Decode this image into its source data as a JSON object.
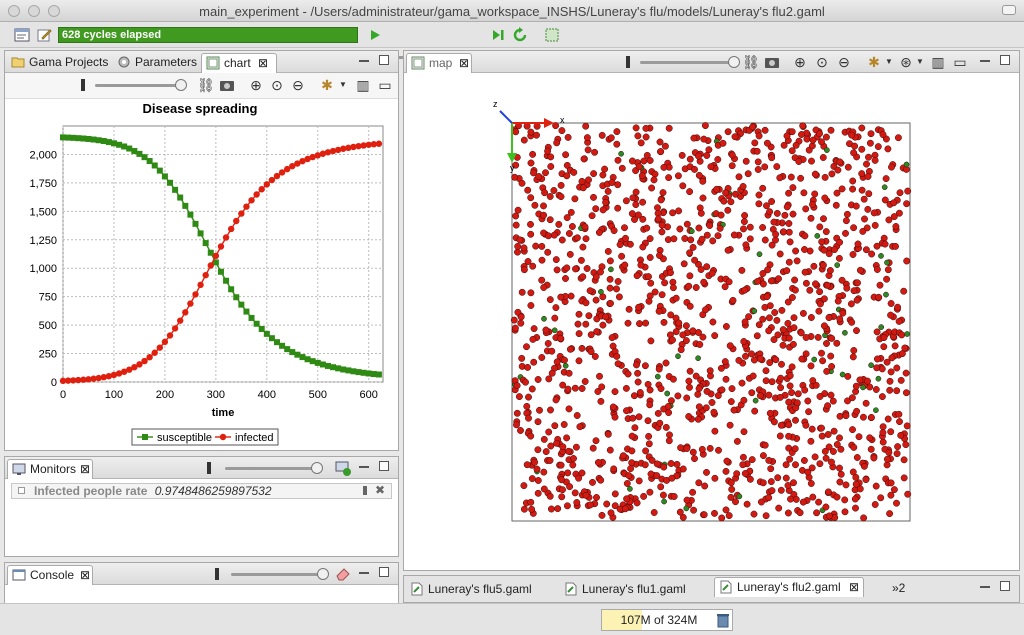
{
  "window": {
    "title": "main_experiment - /Users/administrateur/gama_workspace_INSHS/Luneray's flu/models/Luneray's flu2.gaml"
  },
  "toolbar": {
    "cycles_text": "628 cycles elapsed"
  },
  "left_tabs": [
    {
      "label": "Gama Projects"
    },
    {
      "label": "Parameters"
    },
    {
      "label": "chart"
    }
  ],
  "chart_data": {
    "type": "line",
    "title": "Disease spreading",
    "xlabel": "time",
    "ylabel": "",
    "xlim": [
      0,
      628
    ],
    "ylim": [
      0,
      2250
    ],
    "x_ticks": [
      "0",
      "100",
      "200",
      "300",
      "400",
      "500",
      "600"
    ],
    "y_ticks": [
      "0",
      "250",
      "500",
      "750",
      "1,000",
      "1,250",
      "1,500",
      "1,750",
      "2,000"
    ],
    "x_tick_values": [
      0,
      100,
      200,
      300,
      400,
      500,
      600
    ],
    "y_tick_values": [
      0,
      250,
      500,
      750,
      1000,
      1250,
      1500,
      1750,
      2000
    ],
    "x": [
      0,
      10,
      20,
      30,
      40,
      50,
      60,
      70,
      80,
      90,
      100,
      110,
      120,
      130,
      140,
      150,
      160,
      170,
      180,
      190,
      200,
      210,
      220,
      230,
      240,
      250,
      260,
      270,
      280,
      290,
      300,
      310,
      320,
      330,
      340,
      350,
      360,
      370,
      380,
      390,
      400,
      410,
      420,
      430,
      440,
      450,
      460,
      470,
      480,
      490,
      500,
      510,
      520,
      530,
      540,
      550,
      560,
      570,
      580,
      590,
      600,
      610,
      620
    ],
    "series": [
      {
        "name": "susceptible",
        "color": "#2f8a14",
        "marker": "square",
        "values": [
          2150,
          2148,
          2146,
          2143,
          2140,
          2136,
          2131,
          2125,
          2118,
          2109,
          2098,
          2085,
          2070,
          2052,
          2030,
          2005,
          1976,
          1942,
          1903,
          1858,
          1807,
          1751,
          1689,
          1621,
          1548,
          1471,
          1390,
          1306,
          1221,
          1136,
          1051,
          969,
          890,
          815,
          745,
          680,
          619,
          563,
          512,
          466,
          423,
          385,
          350,
          318,
          289,
          263,
          240,
          219,
          200,
          183,
          168,
          154,
          141,
          130,
          120,
          110,
          102,
          94,
          87,
          81,
          75,
          70,
          66
        ]
      },
      {
        "name": "infected",
        "color": "#e0200e",
        "marker": "circle",
        "values": [
          10,
          12,
          14,
          17,
          20,
          24,
          29,
          35,
          42,
          51,
          62,
          75,
          90,
          108,
          130,
          155,
          184,
          218,
          257,
          302,
          353,
          409,
          471,
          539,
          612,
          689,
          770,
          854,
          939,
          1024,
          1109,
          1191,
          1270,
          1345,
          1415,
          1480,
          1541,
          1597,
          1648,
          1694,
          1737,
          1775,
          1810,
          1842,
          1871,
          1897,
          1920,
          1941,
          1960,
          1977,
          1992,
          2006,
          2019,
          2030,
          2040,
          2050,
          2058,
          2066,
          2073,
          2079,
          2085,
          2090,
          2094
        ]
      }
    ],
    "legend_position": "bottom"
  },
  "monitors": {
    "tab_label": "Monitors",
    "row_label": "Infected people rate",
    "row_value": "0.9748486259897532"
  },
  "console": {
    "tab_label": "Console"
  },
  "map_panel": {
    "tab_label": "map",
    "axis_z": "z",
    "axis_x": "x",
    "axis_y": "y",
    "infected_color": "#d21a12",
    "susceptible_color": "#2a8a24"
  },
  "editor_tabs": [
    {
      "label": "Luneray's flu5.gaml"
    },
    {
      "label": "Luneray's flu1.gaml"
    },
    {
      "label": "Luneray's flu2.gaml"
    },
    {
      "label": "»2"
    }
  ],
  "status": {
    "heap": "107M of 324M"
  }
}
